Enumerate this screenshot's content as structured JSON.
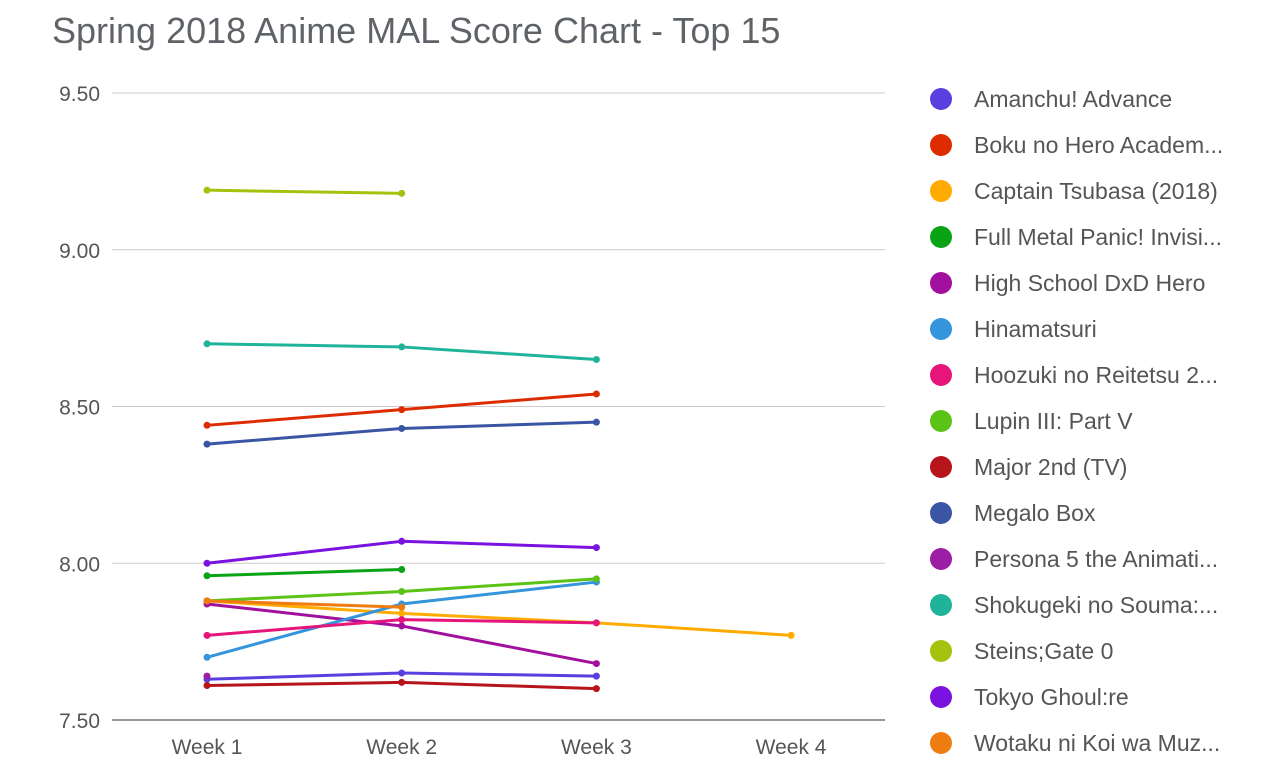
{
  "chart_data": {
    "type": "line",
    "title": "Spring 2018 Anime MAL Score Chart - Top 15",
    "xlabel": "",
    "ylabel": "",
    "categories": [
      "Week 1",
      "Week 2",
      "Week 3",
      "Week 4"
    ],
    "ylim": [
      7.5,
      9.5
    ],
    "yticks": [
      "7.50",
      "8.00",
      "8.50",
      "9.00",
      "9.50"
    ],
    "grid": true,
    "legend_position": "right",
    "series": [
      {
        "name": "Amanchu! Advance",
        "color": "#5a3fe0",
        "values": [
          7.63,
          7.65,
          7.64,
          null
        ]
      },
      {
        "name": "Boku no Hero Academ...",
        "color": "#dd2c00",
        "values": [
          8.44,
          8.49,
          8.54,
          null
        ]
      },
      {
        "name": "Captain Tsubasa (2018)",
        "color": "#ffab00",
        "values": [
          7.88,
          7.84,
          7.81,
          7.77
        ]
      },
      {
        "name": "Full Metal Panic! Invisi...",
        "color": "#0aa316",
        "values": [
          7.96,
          7.98,
          null,
          null
        ]
      },
      {
        "name": "High School DxD Hero",
        "color": "#a2109e",
        "values": [
          7.87,
          7.8,
          7.68,
          null
        ]
      },
      {
        "name": "Hinamatsuri",
        "color": "#3494dc",
        "values": [
          7.7,
          7.87,
          7.94,
          null
        ]
      },
      {
        "name": "Hoozuki no Reitetsu 2...",
        "color": "#e6157a",
        "values": [
          7.77,
          7.82,
          7.81,
          null
        ]
      },
      {
        "name": "Lupin III: Part V",
        "color": "#5bc315",
        "values": [
          7.88,
          7.91,
          7.95,
          null
        ]
      },
      {
        "name": "Major 2nd (TV)",
        "color": "#b8141c",
        "values": [
          7.61,
          7.62,
          7.6,
          null
        ]
      },
      {
        "name": "Megalo Box",
        "color": "#3b55a5",
        "values": [
          8.38,
          8.43,
          8.45,
          null
        ]
      },
      {
        "name": "Persona 5 the Animati...",
        "color": "#9c1ea4",
        "values": [
          7.64,
          null,
          null,
          null
        ]
      },
      {
        "name": "Shokugeki no Souma:...",
        "color": "#1fb39a",
        "values": [
          8.7,
          8.69,
          8.65,
          null
        ]
      },
      {
        "name": "Steins;Gate 0",
        "color": "#a4c20e",
        "values": [
          9.19,
          9.18,
          null,
          null
        ]
      },
      {
        "name": "Tokyo Ghoul:re",
        "color": "#7a12e0",
        "values": [
          8.0,
          8.07,
          8.05,
          null
        ]
      },
      {
        "name": "Wotaku ni Koi wa Muz...",
        "color": "#ee7c10",
        "values": [
          7.88,
          7.86,
          null,
          null
        ]
      }
    ]
  }
}
